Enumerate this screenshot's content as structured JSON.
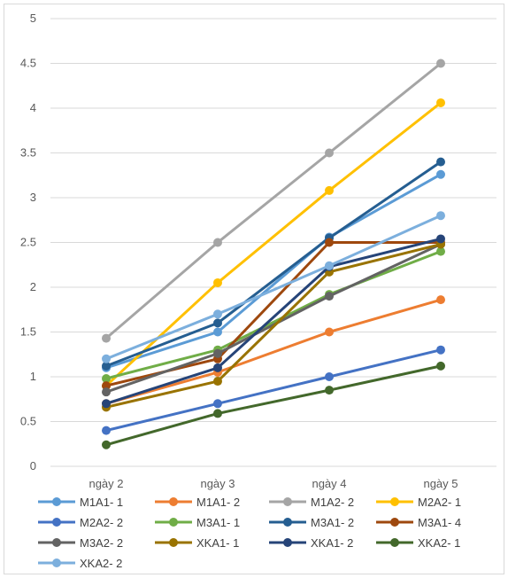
{
  "chart_data": {
    "type": "line",
    "categories": [
      "ngày 2",
      "ngày 3",
      "ngày 4",
      "ngày 5"
    ],
    "ylim": [
      0,
      5
    ],
    "yticks": [
      "0",
      "0.5",
      "1",
      "1.5",
      "2",
      "2.5",
      "3",
      "3.5",
      "4",
      "4.5",
      "5"
    ],
    "grid": true,
    "legend_position": "bottom",
    "series": [
      {
        "name": "M1A1- 1",
        "color": "#5b9bd5",
        "values": [
          1.1,
          1.5,
          2.56,
          3.26
        ]
      },
      {
        "name": "M1A1- 2",
        "color": "#ed7d31",
        "values": [
          0.7,
          1.05,
          1.5,
          1.86
        ]
      },
      {
        "name": "M1A2- 2",
        "color": "#a5a5a5",
        "values": [
          1.43,
          2.5,
          3.5,
          4.5
        ]
      },
      {
        "name": "M2A2- 1",
        "color": "#ffc000",
        "values": [
          0.9,
          2.05,
          3.08,
          4.06
        ]
      },
      {
        "name": "M2A2- 2",
        "color": "#4472c4",
        "values": [
          0.4,
          0.7,
          1.0,
          1.3
        ]
      },
      {
        "name": "M3A1- 1",
        "color": "#70ad47",
        "values": [
          0.98,
          1.3,
          1.92,
          2.4
        ]
      },
      {
        "name": "M3A1- 2",
        "color": "#255e91",
        "values": [
          1.12,
          1.6,
          2.55,
          3.4
        ]
      },
      {
        "name": "M3A1- 4",
        "color": "#9e480e",
        "values": [
          0.9,
          1.2,
          2.5,
          2.5
        ]
      },
      {
        "name": "M3A2- 2",
        "color": "#636363",
        "values": [
          0.83,
          1.26,
          1.9,
          2.48
        ]
      },
      {
        "name": "XKA1- 1",
        "color": "#997300",
        "values": [
          0.66,
          0.95,
          2.17,
          2.48
        ]
      },
      {
        "name": "XKA1- 2",
        "color": "#264478",
        "values": [
          0.7,
          1.1,
          2.23,
          2.54
        ]
      },
      {
        "name": "XKA2- 1",
        "color": "#43682b",
        "values": [
          0.24,
          0.59,
          0.85,
          1.12
        ]
      },
      {
        "name": "XKA2- 2",
        "color": "#7cafdd",
        "values": [
          1.2,
          1.7,
          2.24,
          2.8
        ]
      }
    ]
  }
}
